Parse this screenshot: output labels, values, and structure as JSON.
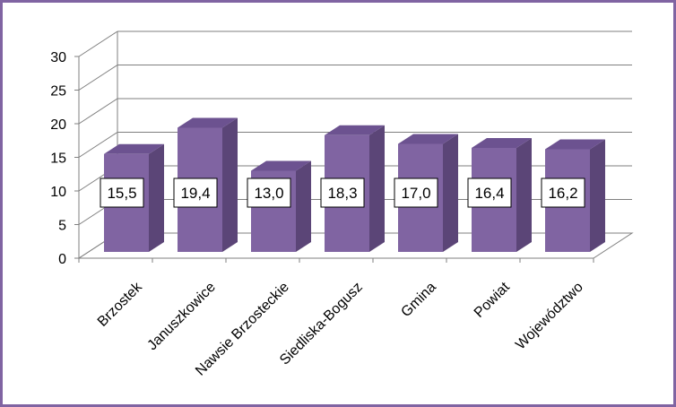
{
  "chart_data": {
    "type": "bar",
    "style": "3d-column",
    "categories": [
      "Brzostek",
      "Januszkowice",
      "Nawsie Brzosteckie",
      "Siedliska-Bogusz",
      "Gmina",
      "Powiat",
      "Województwo"
    ],
    "values": [
      15.5,
      19.4,
      13.0,
      18.3,
      17.0,
      16.4,
      16.2
    ],
    "data_labels": [
      "15,5",
      "19,4",
      "13,0",
      "18,3",
      "17,0",
      "16,4",
      "16,2"
    ],
    "y_ticks": [
      "0",
      "5",
      "10",
      "15",
      "20",
      "25",
      "30"
    ],
    "ylim": [
      0,
      30
    ],
    "grid": true,
    "legend": "none",
    "colors": {
      "bar_front": "#8064a2",
      "bar_side": "#5b4577",
      "bar_top": "#6c5290",
      "frame": "#8064a2",
      "grid": "#7f7f7f"
    }
  }
}
